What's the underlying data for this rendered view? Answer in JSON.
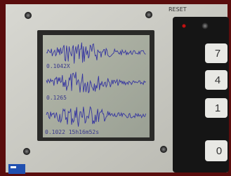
{
  "device": {
    "reset_label": "RESET",
    "keypad": [
      "7",
      "4",
      "1",
      "0"
    ],
    "screen": {
      "lines": [
        "0.1042X",
        "0.1265",
        "0.1022 15h16m52s"
      ]
    }
  }
}
